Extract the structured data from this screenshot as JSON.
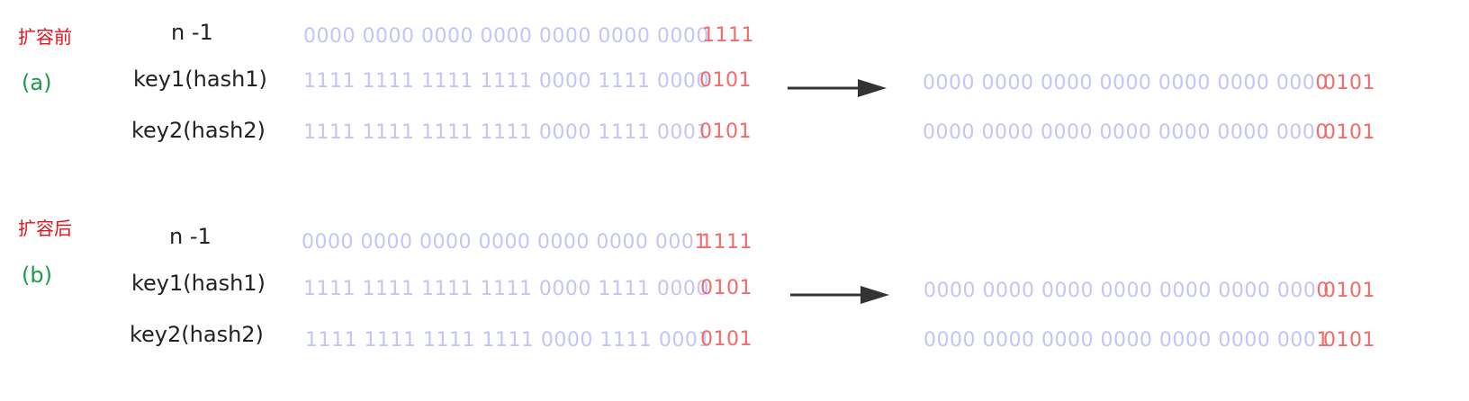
{
  "colors": {
    "section_title": "#e8111b",
    "section_label": "#1c9a4a",
    "row_label": "#222222",
    "bits_muted": "#c4c4f6",
    "bits_highlight": "#f26b6b",
    "arrow": "#333333"
  },
  "sections": [
    {
      "title": "扩容前",
      "label": "(a)",
      "rows": [
        {
          "name": "n -1",
          "high_bits": "0000 0000 0000 0000 0000 0000 0000",
          "high_tail": "",
          "low_bits": "1111"
        },
        {
          "name": "key1(hash1)",
          "high_bits": "1111 1111 1111 1111 0000 1111 0000",
          "high_tail": "",
          "low_bits": "0101"
        },
        {
          "name": "key2(hash2)",
          "high_bits": "1111 1111 1111 1111 0000 1111 0001",
          "high_tail": "",
          "low_bits": "0101"
        }
      ],
      "results": [
        {
          "high_bits": "0000 0000 0000 0000 0000 0000 000",
          "high_tail": "0",
          "low_bits": "0101"
        },
        {
          "high_bits": "0000 0000 0000 0000 0000 0000 000",
          "high_tail": "0",
          "low_bits": "0101"
        }
      ],
      "arrow_icon": "right-arrow-icon"
    },
    {
      "title": "扩容后",
      "label": "(b)",
      "rows": [
        {
          "name": "n -1",
          "high_bits": "0000 0000 0000 0000 0000 0000 000",
          "high_tail": "1",
          "low_bits": "1111"
        },
        {
          "name": "key1(hash1)",
          "high_bits": "1111 1111 1111 1111 0000 1111 0000",
          "high_tail": "",
          "low_bits": "0101"
        },
        {
          "name": "key2(hash2)",
          "high_bits": "1111 1111 1111 1111 0000 1111 0001",
          "high_tail": "",
          "low_bits": "0101"
        }
      ],
      "results": [
        {
          "high_bits": "0000 0000 0000 0000 0000 0000 000",
          "high_tail": "0",
          "low_bits": "0101"
        },
        {
          "high_bits": "0000 0000 0000 0000 0000 0000 000",
          "high_tail": "1",
          "low_bits": "0101"
        }
      ],
      "arrow_icon": "right-arrow-icon"
    }
  ]
}
